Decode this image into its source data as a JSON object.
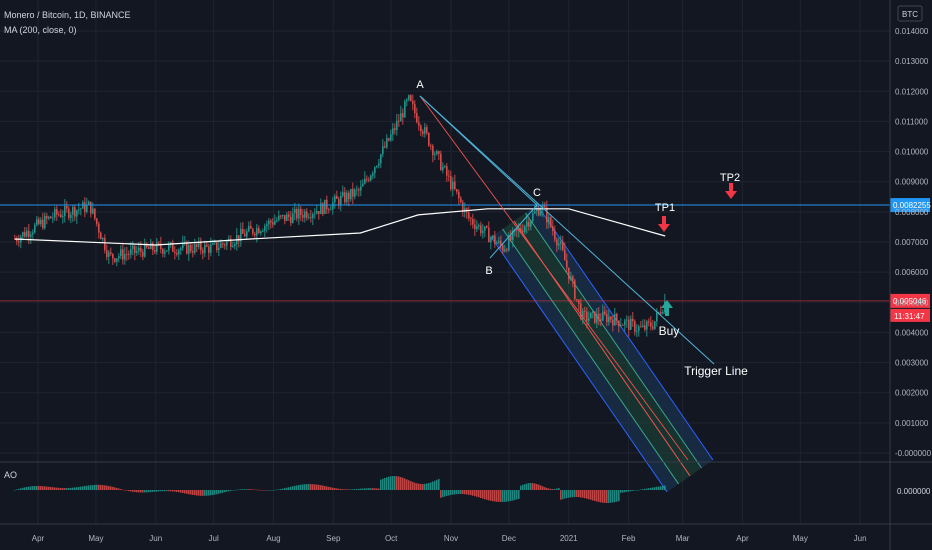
{
  "header": {
    "symbol_line": "Monero / Bitcoin, 1D, BINANCE",
    "indicator_line": "MA (200, close, 0)",
    "currency_badge": "BTC"
  },
  "oscillator": {
    "label": "AO",
    "zero_label": "0.000000"
  },
  "colors": {
    "background": "#131722",
    "grid": "#1f2430",
    "candle_up": "#26a69a",
    "candle_down": "#ef5350",
    "ma_line": "#ffffff",
    "blue_level": "#2196f3",
    "current_price": "#f23645",
    "channel_outline": "#2962ff",
    "trigger_line": "#4fb3d9"
  },
  "chart_data": {
    "type": "candlestick",
    "symbol": "XMR/BTC",
    "interval": "1D",
    "x_ticks": [
      "Apr",
      "May",
      "Jun",
      "Jul",
      "Aug",
      "Sep",
      "Oct",
      "Nov",
      "Dec",
      "2021",
      "Feb",
      "Mar",
      "Apr",
      "May",
      "Jun"
    ],
    "y_ticks": [
      "0.014000",
      "0.013000",
      "0.012000",
      "0.011000",
      "0.010000",
      "0.009000",
      "0.008000",
      "0.007000",
      "0.006000",
      "0.005000",
      "0.004000",
      "0.003000",
      "0.002000",
      "0.001000",
      "-0.000000"
    ],
    "ylim": [
      -0.0001,
      0.0149
    ],
    "price_path": [
      {
        "x": "2020-03-20",
        "y": 0.0071
      },
      {
        "x": "2020-04-10",
        "y": 0.0079
      },
      {
        "x": "2020-04-28",
        "y": 0.0082
      },
      {
        "x": "2020-05-08",
        "y": 0.0065
      },
      {
        "x": "2020-06-01",
        "y": 0.0068
      },
      {
        "x": "2020-07-01",
        "y": 0.0068
      },
      {
        "x": "2020-08-01",
        "y": 0.0077
      },
      {
        "x": "2020-08-25",
        "y": 0.0081
      },
      {
        "x": "2020-09-15",
        "y": 0.0087
      },
      {
        "x": "2020-09-30",
        "y": 0.0104
      },
      {
        "x": "2020-10-10",
        "y": 0.0117
      },
      {
        "x": "2020-10-25",
        "y": 0.0098
      },
      {
        "x": "2020-11-10",
        "y": 0.0078
      },
      {
        "x": "2020-11-28",
        "y": 0.0068
      },
      {
        "x": "2020-12-18",
        "y": 0.0082
      },
      {
        "x": "2020-12-28",
        "y": 0.0068
      },
      {
        "x": "2021-01-08",
        "y": 0.0045
      },
      {
        "x": "2021-01-22",
        "y": 0.0045
      },
      {
        "x": "2021-02-08",
        "y": 0.0041
      },
      {
        "x": "2021-02-14",
        "y": 0.0043
      },
      {
        "x": "2021-02-20",
        "y": 0.00505
      }
    ],
    "ma_200": [
      {
        "x": "2020-03-20",
        "y": 0.0071
      },
      {
        "x": "2020-06-01",
        "y": 0.0069
      },
      {
        "x": "2020-07-20",
        "y": 0.0071
      },
      {
        "x": "2020-09-15",
        "y": 0.0073
      },
      {
        "x": "2020-10-15",
        "y": 0.0079
      },
      {
        "x": "2020-11-20",
        "y": 0.0081
      },
      {
        "x": "2021-01-01",
        "y": 0.0081
      },
      {
        "x": "2021-02-20",
        "y": 0.0072
      }
    ],
    "horizontal_levels": [
      {
        "label": "0.0082255",
        "value": 0.0082255
      },
      {
        "label": "0.005046",
        "value": 0.005046
      }
    ],
    "countdown": "11:31:47",
    "annotations": [
      {
        "text": "A",
        "x": "2020-10-12",
        "y": 0.01175
      },
      {
        "text": "B",
        "x": "2020-11-26",
        "y": 0.0064
      },
      {
        "text": "C",
        "x": "2020-12-18",
        "y": 0.0084
      },
      {
        "text": "TP1",
        "x": "2021-02-20",
        "y": 0.0074
      },
      {
        "text": "TP2",
        "x": "2021-03-20",
        "y": 0.0085
      },
      {
        "text": "Buy",
        "x": "2021-02-22",
        "y": 0.0044
      },
      {
        "text": "Trigger Line",
        "x": "2021-03-05",
        "y": 0.0031
      }
    ]
  }
}
